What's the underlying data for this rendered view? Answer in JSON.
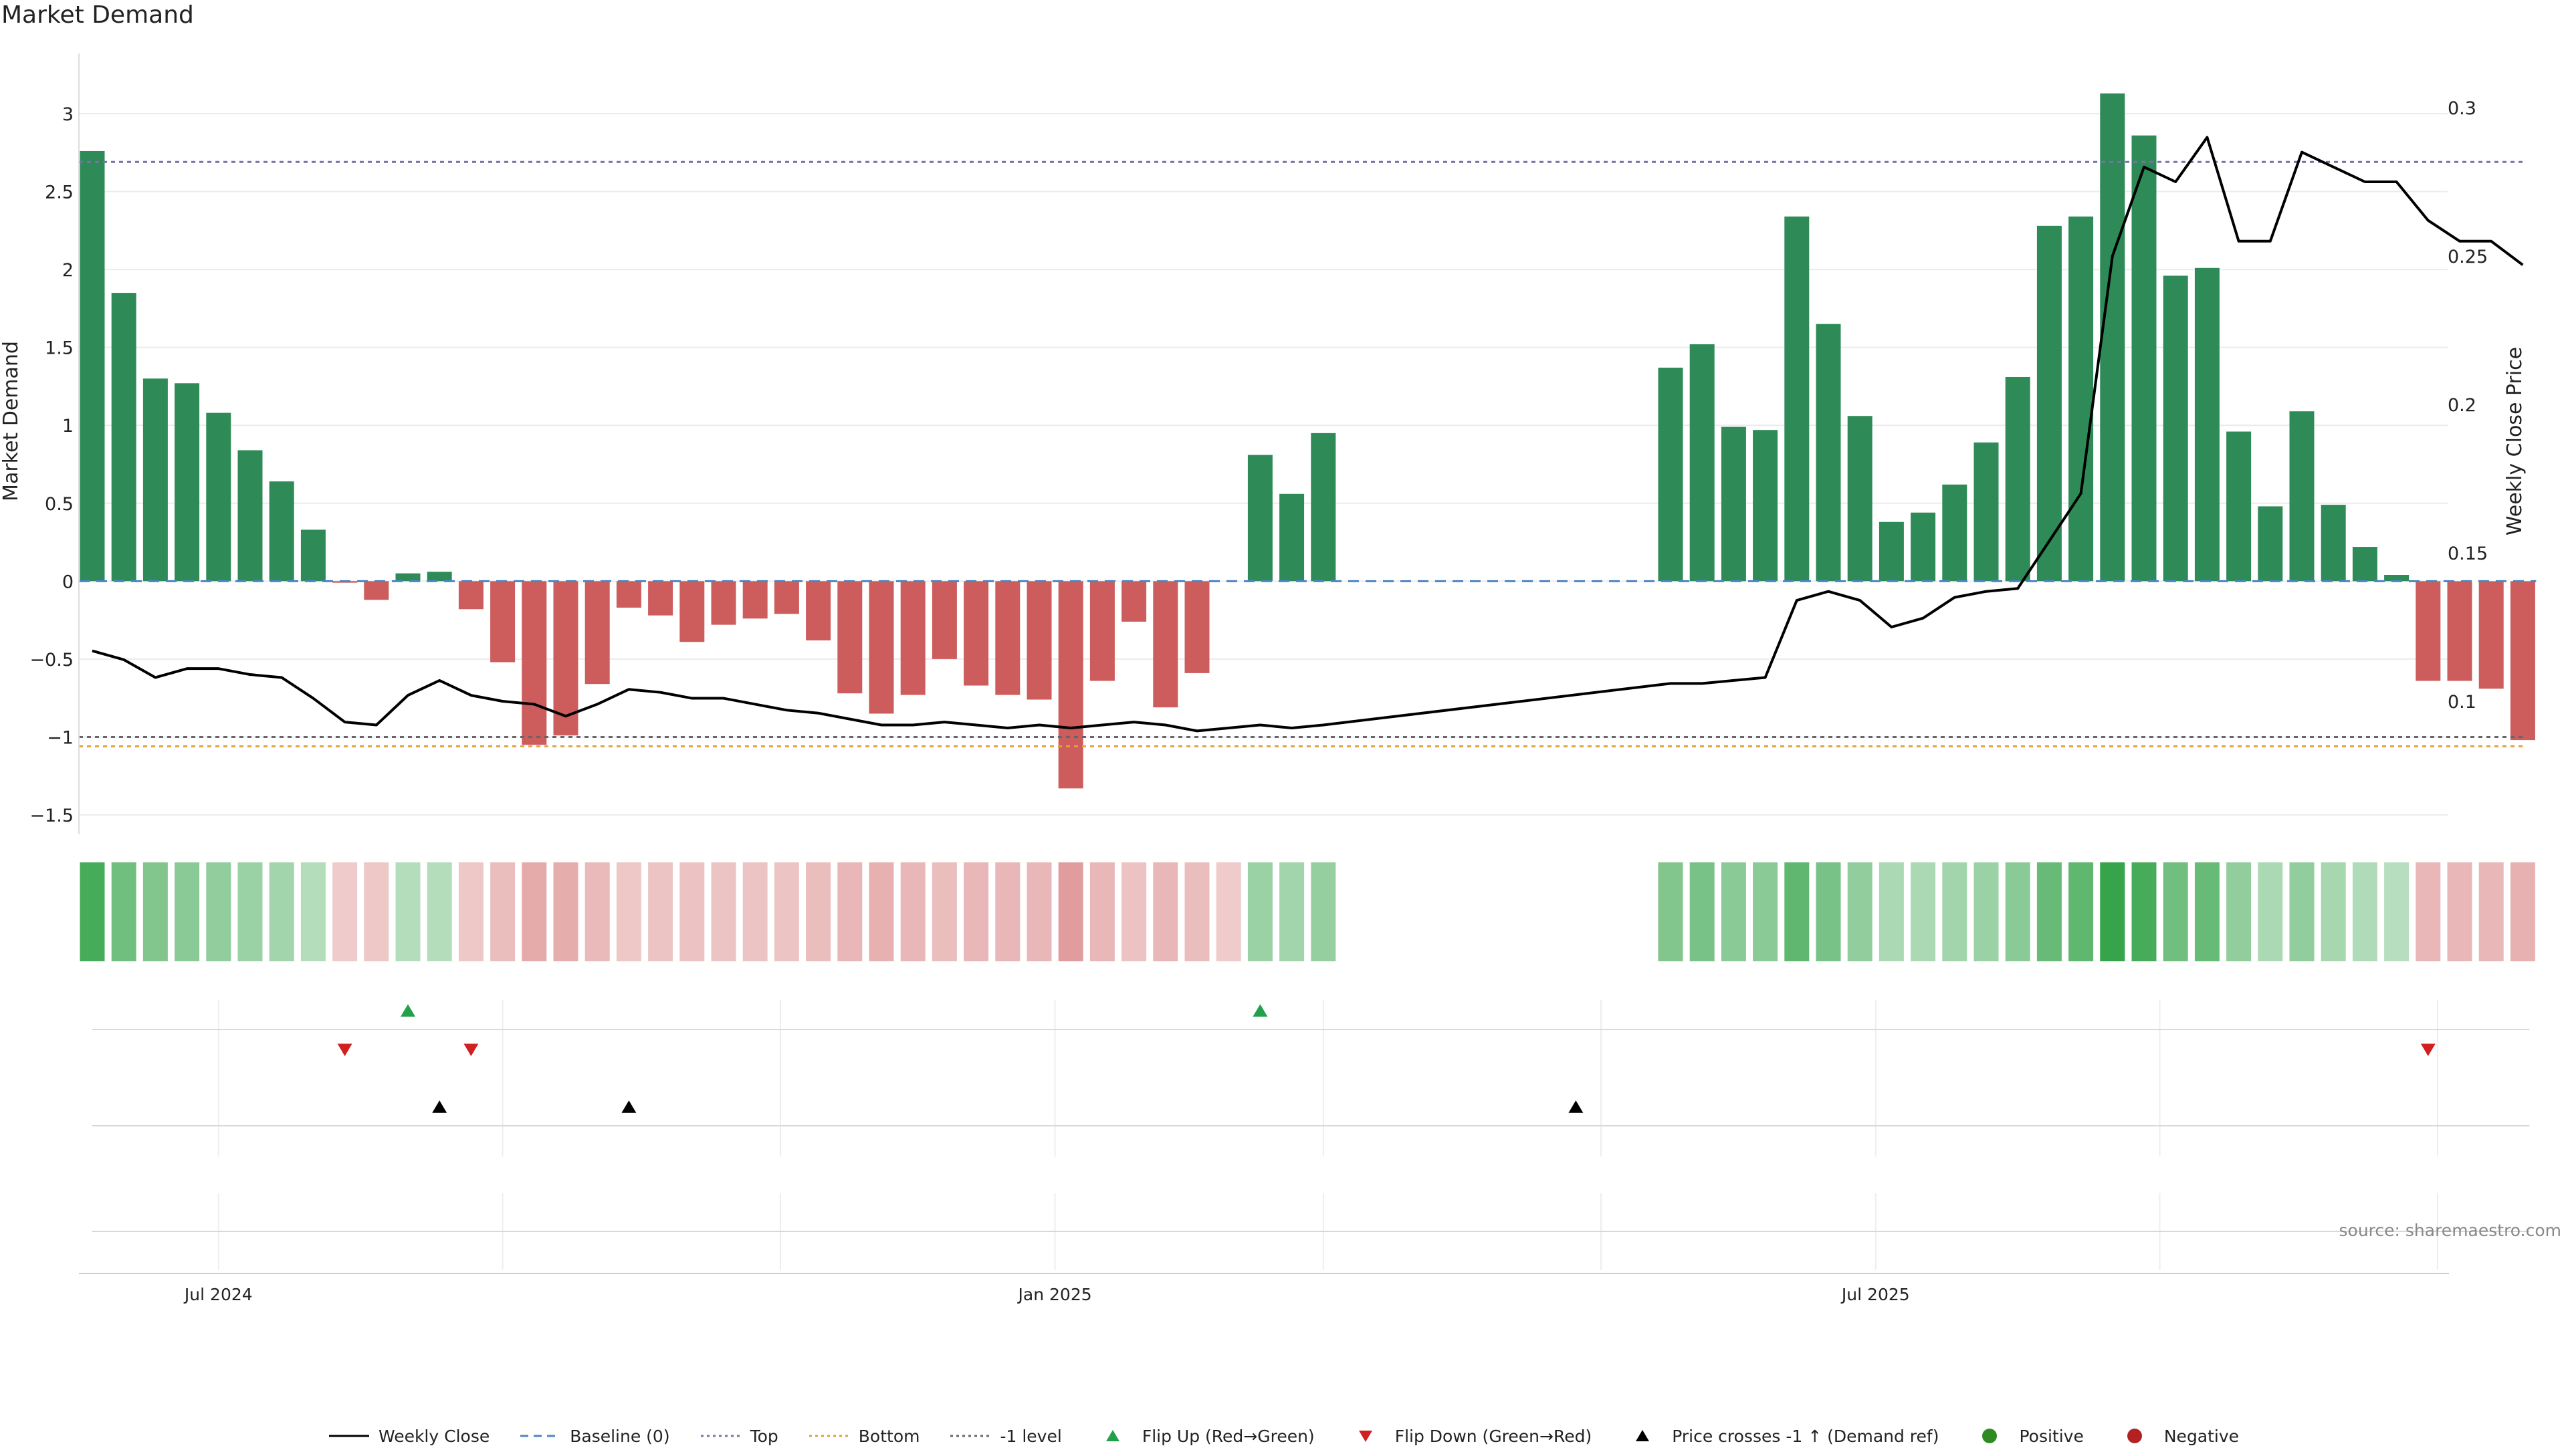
{
  "title": "Market Demand",
  "source": "source: sharemaestro.com",
  "colors": {
    "positive": "#2e8b57",
    "negative": "#cd5c5c",
    "price": "#000000",
    "baseline": "#4a86c5",
    "top": "#7b6fa8",
    "bottom": "#e0a040",
    "minus1": "#666666",
    "flip_up": "#22a04a",
    "flip_down": "#d02020",
    "cross": "#000000",
    "heat_pos": "#2ea043",
    "heat_neg": "#cd5c5c"
  },
  "legend": [
    {
      "label": "Weekly Close",
      "kind": "line",
      "color": "#000000",
      "dash": "none"
    },
    {
      "label": "Baseline (0)",
      "kind": "line",
      "color": "#4a86c5",
      "dash": "dashed"
    },
    {
      "label": "Top",
      "kind": "line",
      "color": "#7b6fa8",
      "dash": "dotted"
    },
    {
      "label": "Bottom",
      "kind": "line",
      "color": "#e0a040",
      "dash": "dotted"
    },
    {
      "label": "-1 level",
      "kind": "line",
      "color": "#666666",
      "dash": "dotted"
    },
    {
      "label": "Flip Up (Red→Green)",
      "kind": "tri-up",
      "color": "#22a04a"
    },
    {
      "label": "Flip Down (Green→Red)",
      "kind": "tri-down",
      "color": "#d02020"
    },
    {
      "label": "Price crosses -1 ↑ (Demand ref)",
      "kind": "tri-up",
      "color": "#000000"
    },
    {
      "label": "Positive",
      "kind": "dot",
      "color": "#2e8b22"
    },
    {
      "label": "Negative",
      "kind": "dot",
      "color": "#b22222"
    }
  ],
  "chart_data": {
    "type": "bar",
    "title": "Market Demand",
    "ylabel": "Market Demand",
    "y2label": "Weekly Close Price",
    "ylim": [
      -1.5,
      3.2
    ],
    "y2lim": [
      0.07,
      0.325
    ],
    "yticks": [
      -1.5,
      -1,
      -0.5,
      0,
      0.5,
      1,
      1.5,
      2,
      2.5,
      3
    ],
    "ytick_labels": [
      "−1.5",
      "−1",
      "−0.5",
      "0",
      "0.5",
      "1",
      "1.5",
      "2",
      "2.5",
      "3"
    ],
    "y2ticks": [
      0.1,
      0.15,
      0.2,
      0.25,
      0.3
    ],
    "y2tick_labels": [
      "0.1",
      "0.15",
      "0.2",
      "0.25",
      "0.3"
    ],
    "x_tick_labels": [
      {
        "label": "Jul 2024",
        "week": 4
      },
      {
        "label": "Jan 2025",
        "week": 30.5
      },
      {
        "label": "Jul 2025",
        "week": 56.5
      }
    ],
    "x_minor_gridlines": [
      4,
      13,
      21.8,
      30.5,
      39,
      47.8,
      56.5,
      65.5,
      74.3
    ],
    "demand": [
      2.76,
      1.85,
      1.3,
      1.27,
      1.08,
      0.84,
      0.64,
      0.33,
      -0.01,
      -0.12,
      0.05,
      0.06,
      -0.18,
      -0.52,
      -1.05,
      -0.99,
      -0.66,
      -0.17,
      -0.22,
      -0.39,
      -0.28,
      -0.24,
      -0.21,
      -0.38,
      -0.72,
      -0.85,
      -0.73,
      -0.5,
      -0.67,
      -0.73,
      -0.76,
      -1.33,
      -0.64,
      -0.26,
      -0.81,
      -0.59,
      null,
      0.81,
      0.56,
      0.95,
      null,
      null,
      null,
      null,
      null,
      null,
      null,
      null,
      null,
      null,
      1.37,
      1.52,
      0.99,
      0.97,
      2.34,
      1.65,
      1.06,
      0.38,
      0.44,
      0.62,
      0.89,
      1.31,
      2.28,
      2.34,
      3.13,
      2.86,
      1.96,
      2.01,
      0.96,
      0.48,
      1.09,
      0.49,
      0.22,
      0.04,
      -0.64,
      -0.64,
      -0.69,
      -1.02
    ],
    "price": [
      0.117,
      0.114,
      0.108,
      0.111,
      0.111,
      0.109,
      0.108,
      0.101,
      0.093,
      0.092,
      0.102,
      0.107,
      0.102,
      0.1,
      0.099,
      0.095,
      0.099,
      0.104,
      0.103,
      0.101,
      0.101,
      0.099,
      0.097,
      0.096,
      0.094,
      0.092,
      0.092,
      0.093,
      0.092,
      0.091,
      0.092,
      0.091,
      0.092,
      0.093,
      0.092,
      0.09,
      0.091,
      0.092,
      0.091,
      0.092,
      null,
      null,
      null,
      null,
      null,
      null,
      null,
      null,
      null,
      null,
      0.106,
      0.106,
      0.107,
      0.108,
      0.134,
      0.137,
      0.134,
      0.125,
      0.128,
      0.135,
      0.137,
      0.138,
      0.154,
      0.17,
      0.25,
      0.28,
      0.275,
      0.29,
      0.255,
      0.255,
      0.285,
      0.28,
      0.275,
      0.275,
      0.262,
      0.255,
      0.255,
      0.247
    ],
    "price_segments": [
      [
        0,
        39
      ],
      [
        39,
        77
      ]
    ],
    "top_level": 2.69,
    "bottom_level": -1.06,
    "minus1_level": -1.0,
    "flip_up_weeks": [
      10,
      37
    ],
    "flip_down_weeks": [
      8,
      12,
      74
    ],
    "price_cross_weeks": [
      11,
      17,
      47
    ],
    "heat_intensity": [
      0.85,
      0.6,
      0.5,
      0.45,
      0.4,
      0.35,
      0.3,
      0.2,
      0.15,
      0.18,
      0.2,
      0.2,
      0.18,
      0.25,
      0.4,
      0.38,
      0.28,
      0.18,
      0.2,
      0.22,
      0.2,
      0.2,
      0.2,
      0.25,
      0.3,
      0.35,
      0.3,
      0.25,
      0.3,
      0.3,
      0.3,
      0.5,
      0.3,
      0.22,
      0.3,
      0.25,
      0.15,
      0.35,
      0.3,
      0.38,
      null,
      null,
      null,
      null,
      null,
      null,
      null,
      null,
      null,
      null,
      0.5,
      0.55,
      0.45,
      0.45,
      0.7,
      0.55,
      0.4,
      0.25,
      0.25,
      0.3,
      0.35,
      0.45,
      0.65,
      0.7,
      0.95,
      0.85,
      0.6,
      0.65,
      0.4,
      0.25,
      0.4,
      0.28,
      0.22,
      0.18,
      0.3,
      0.3,
      0.3,
      0.35
    ]
  }
}
